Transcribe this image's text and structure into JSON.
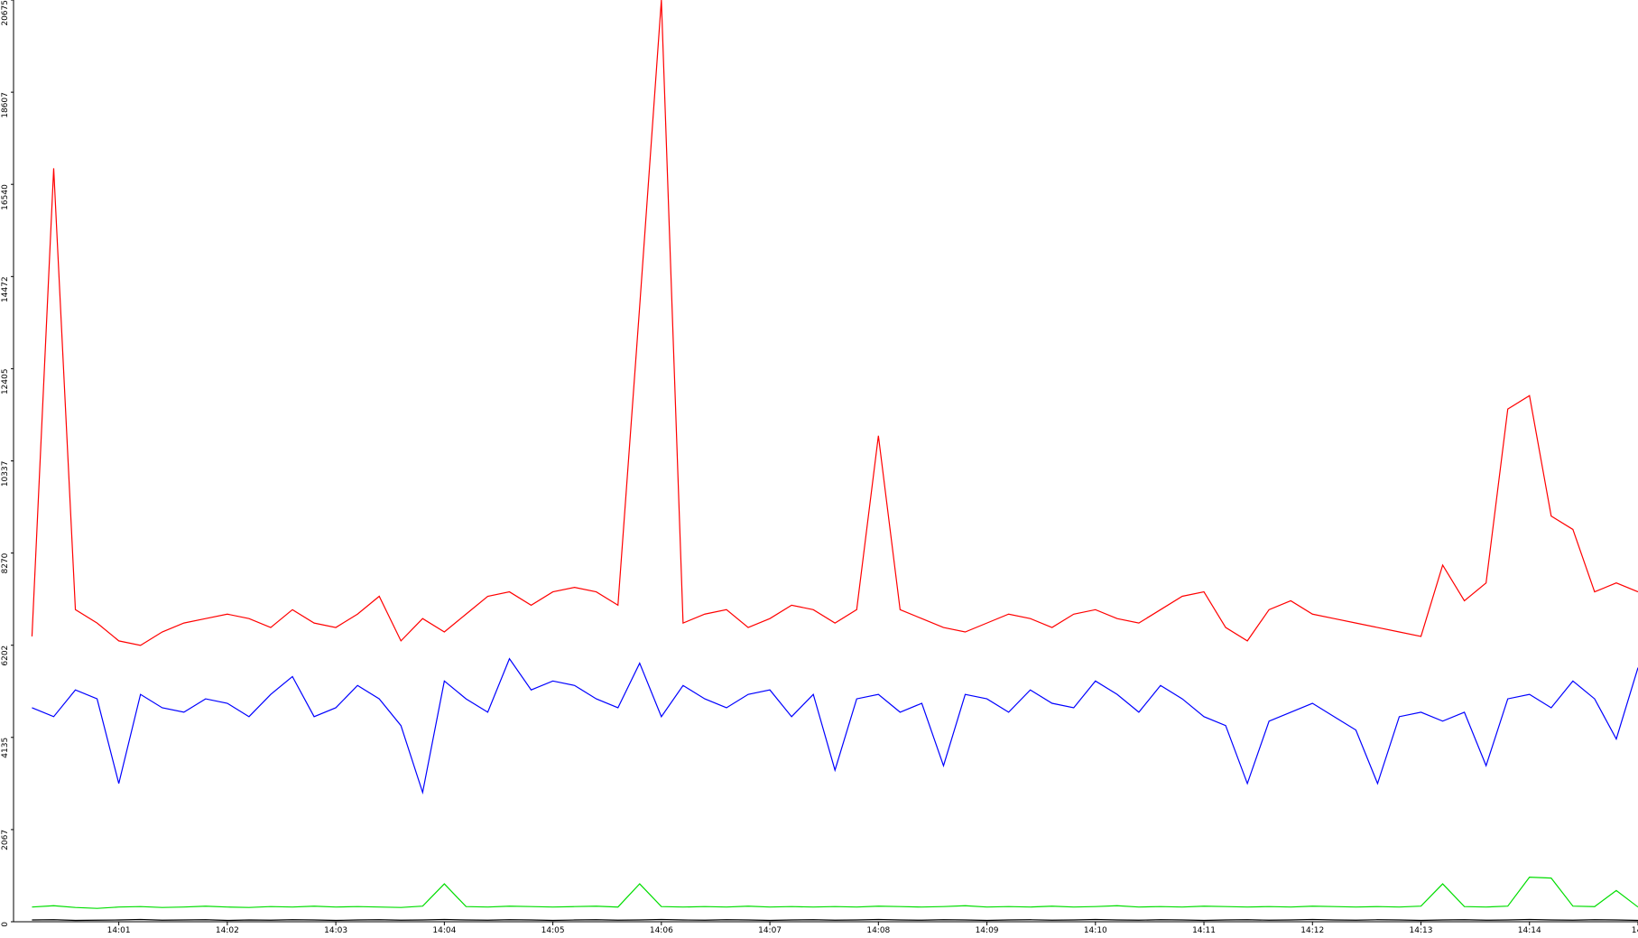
{
  "chart_data": {
    "type": "line",
    "x": [
      0.2,
      0.4,
      0.6,
      0.8,
      1.0,
      1.2,
      1.4,
      1.6,
      1.8,
      2.0,
      2.2,
      2.4,
      2.6,
      2.8,
      3.0,
      3.2,
      3.4,
      3.6,
      3.8,
      4.0,
      4.2,
      4.4,
      4.6,
      4.8,
      5.0,
      5.2,
      5.4,
      5.6,
      5.8,
      6.0,
      6.2,
      6.4,
      6.6,
      6.8,
      7.0,
      7.2,
      7.4,
      7.6,
      7.8,
      8.0,
      8.2,
      8.4,
      8.6,
      8.8,
      9.0,
      9.2,
      9.4,
      9.6,
      9.8,
      10.0,
      10.2,
      10.4,
      10.6,
      10.8,
      11.0,
      11.2,
      11.4,
      11.6,
      11.8,
      12.0,
      12.2,
      12.4,
      12.6,
      12.8,
      13.0,
      13.2,
      13.4,
      13.6,
      13.8,
      14.0,
      14.2,
      14.4,
      14.6,
      14.8,
      15.0
    ],
    "series": [
      {
        "color": "#ff0000",
        "values": [
          6400,
          16900,
          7000,
          6700,
          6300,
          6200,
          6500,
          6700,
          6800,
          6900,
          6800,
          6600,
          7000,
          6700,
          6600,
          6900,
          7300,
          6300,
          6800,
          6500,
          6900,
          7300,
          7400,
          7100,
          7400,
          7500,
          7400,
          7100,
          13800,
          20675,
          6700,
          6900,
          7000,
          6600,
          6800,
          7100,
          7000,
          6700,
          7000,
          10900,
          7000,
          6800,
          6600,
          6500,
          6700,
          6900,
          6800,
          6600,
          6900,
          7000,
          6800,
          6700,
          7000,
          7300,
          7400,
          6600,
          6300,
          7000,
          7200,
          6900,
          6800,
          6700,
          6600,
          6500,
          6400,
          8000,
          7200,
          7600,
          11500,
          11800,
          9100,
          8800,
          7400,
          7600,
          7400
        ]
      },
      {
        "color": "#0000ff",
        "values": [
          4800,
          4600,
          5200,
          5000,
          3100,
          5100,
          4800,
          4700,
          5000,
          4900,
          4600,
          5100,
          5500,
          4600,
          4800,
          5300,
          5000,
          4400,
          2900,
          5400,
          5000,
          4700,
          5900,
          5200,
          5400,
          5300,
          5000,
          4800,
          5800,
          4600,
          5300,
          5000,
          4800,
          5100,
          5200,
          4600,
          5100,
          3400,
          5000,
          5100,
          4700,
          4900,
          3500,
          5100,
          5000,
          4700,
          5200,
          4900,
          4800,
          5400,
          5100,
          4700,
          5300,
          5000,
          4600,
          4400,
          3100,
          4500,
          4700,
          4900,
          4600,
          4300,
          3100,
          4600,
          4700,
          4500,
          4700,
          3500,
          5000,
          5100,
          4800,
          5400,
          5000,
          4100,
          5700
        ]
      },
      {
        "color": "#00dd00",
        "values": [
          330,
          360,
          320,
          300,
          330,
          340,
          320,
          330,
          350,
          330,
          320,
          340,
          330,
          350,
          330,
          340,
          330,
          320,
          350,
          850,
          340,
          330,
          350,
          340,
          330,
          340,
          350,
          330,
          850,
          340,
          330,
          340,
          330,
          350,
          330,
          340,
          330,
          340,
          330,
          350,
          340,
          330,
          340,
          360,
          330,
          340,
          330,
          350,
          330,
          340,
          360,
          330,
          340,
          330,
          350,
          340,
          330,
          340,
          330,
          350,
          340,
          330,
          340,
          330,
          350,
          850,
          340,
          330,
          350,
          1000,
          980,
          350,
          340,
          700,
          330
        ]
      },
      {
        "color": "#000000",
        "values": [
          40,
          45,
          30,
          35,
          40,
          50,
          35,
          40,
          45,
          30,
          40,
          35,
          45,
          40,
          30,
          40,
          45,
          35,
          40,
          50,
          40,
          35,
          45,
          40,
          30,
          40,
          45,
          35,
          40,
          50,
          40,
          35,
          45,
          40,
          30,
          40,
          45,
          35,
          40,
          50,
          40,
          35,
          45,
          40,
          30,
          40,
          45,
          35,
          40,
          50,
          40,
          35,
          45,
          40,
          30,
          40,
          45,
          35,
          40,
          50,
          40,
          35,
          45,
          40,
          30,
          40,
          45,
          35,
          40,
          50,
          40,
          35,
          45,
          40,
          30
        ]
      }
    ],
    "xlim": [
      0.03,
      15.0
    ],
    "xticks": [
      {
        "value": 1,
        "label": "14:01"
      },
      {
        "value": 2,
        "label": "14:02"
      },
      {
        "value": 3,
        "label": "14:03"
      },
      {
        "value": 4,
        "label": "14:04"
      },
      {
        "value": 5,
        "label": "14:05"
      },
      {
        "value": 6,
        "label": "14:06"
      },
      {
        "value": 7,
        "label": "14:07"
      },
      {
        "value": 8,
        "label": "14:08"
      },
      {
        "value": 9,
        "label": "14:09"
      },
      {
        "value": 10,
        "label": "14:10"
      },
      {
        "value": 11,
        "label": "14:11"
      },
      {
        "value": 12,
        "label": "14:12"
      },
      {
        "value": 13,
        "label": "14:13"
      },
      {
        "value": 14,
        "label": "14:14"
      },
      {
        "value": 15,
        "label": "14:"
      }
    ],
    "ylim": [
      0,
      20675
    ],
    "yticks": [
      0,
      2067,
      4135,
      6202,
      8270,
      10337,
      12405,
      14472,
      16540,
      18607,
      20675
    ],
    "grid": false
  }
}
